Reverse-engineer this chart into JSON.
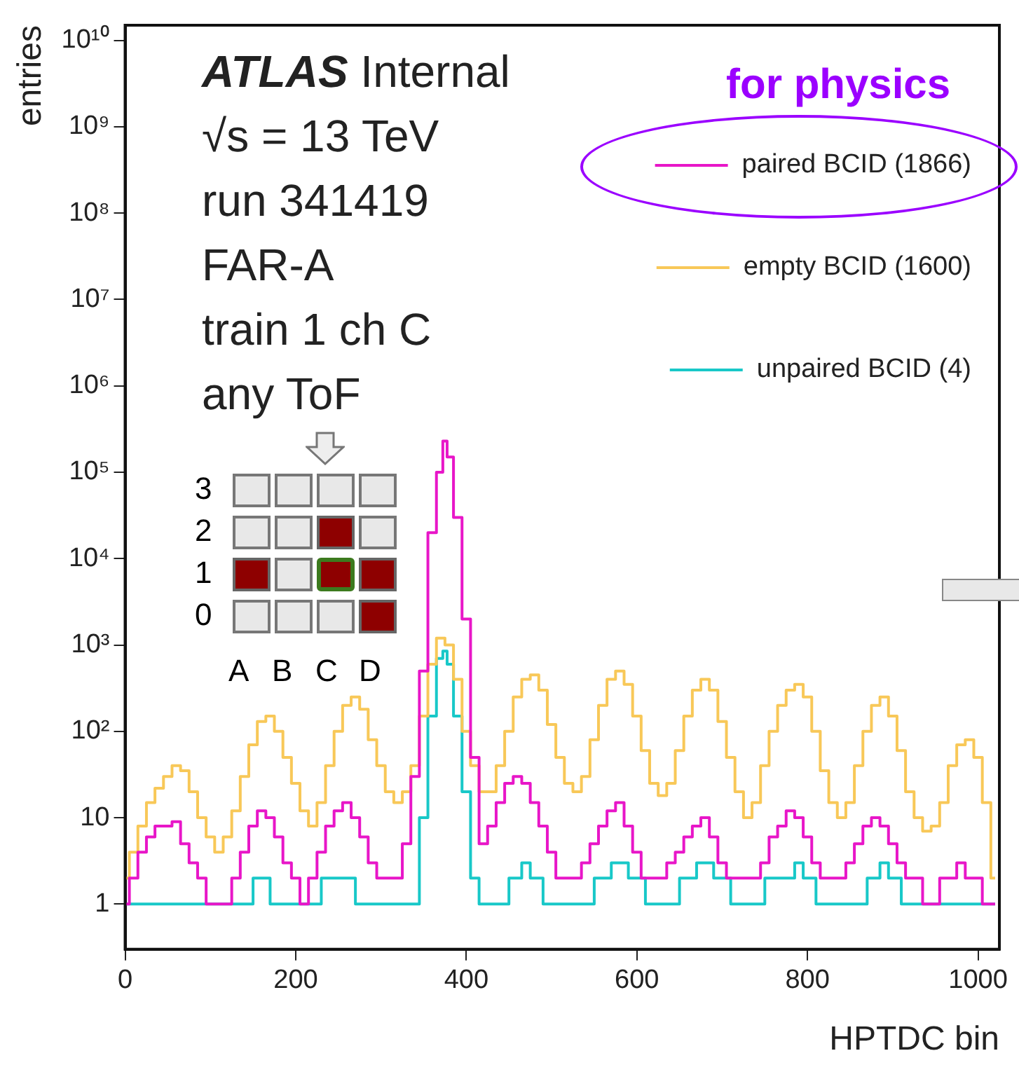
{
  "chart_data": {
    "type": "step",
    "xlabel": "HPTDC bin",
    "ylabel": "entries",
    "log": "y",
    "grid": false,
    "legend": "top right",
    "xlim": [
      0,
      1025
    ],
    "xticks": [
      0,
      200,
      400,
      600,
      800,
      1000
    ],
    "ylim": [
      0.3,
      15000000000
    ],
    "yticks": [
      1,
      10,
      {
        "value": 100,
        "label": "10²"
      },
      {
        "value": 1000,
        "label": "10³"
      },
      {
        "value": 10000,
        "label": "10⁴"
      },
      {
        "value": 100000,
        "label": "10⁵"
      },
      {
        "value": 1000000,
        "label": "10⁶"
      },
      {
        "value": 10000000,
        "label": "10⁷"
      },
      {
        "value": 100000000,
        "label": "10⁸"
      },
      {
        "value": 1000000000,
        "label": "10⁹"
      },
      {
        "value": 10000000000,
        "label": "10¹⁰"
      }
    ],
    "annotations": [
      "ATLAS Internal",
      "√s = 13 TeV",
      "run 341419",
      "FAR-A",
      "train 1 ch C",
      "any ToF",
      "for physics",
      "3",
      "2",
      "1",
      "0",
      "A",
      "B",
      "C",
      "D"
    ],
    "series": [
      {
        "name": "paired BCID (1866)",
        "color": "#e816c8",
        "x": [
          0,
          10,
          20,
          30,
          40,
          50,
          60,
          70,
          80,
          90,
          100,
          110,
          120,
          130,
          140,
          150,
          160,
          170,
          180,
          190,
          200,
          210,
          220,
          230,
          240,
          250,
          260,
          270,
          280,
          290,
          300,
          310,
          320,
          330,
          340,
          350,
          360,
          370,
          375,
          380,
          390,
          400,
          410,
          420,
          430,
          440,
          450,
          460,
          470,
          480,
          490,
          500,
          510,
          520,
          530,
          540,
          550,
          560,
          570,
          580,
          590,
          600,
          610,
          620,
          630,
          640,
          650,
          660,
          670,
          680,
          690,
          700,
          710,
          720,
          730,
          740,
          750,
          760,
          770,
          780,
          790,
          800,
          810,
          820,
          830,
          840,
          850,
          860,
          870,
          880,
          890,
          900,
          910,
          920,
          930,
          940,
          950,
          960,
          970,
          980,
          990,
          1000,
          1010,
          1020
        ],
        "values": [
          1,
          2,
          4,
          6,
          8,
          8,
          9,
          5,
          3,
          2,
          1,
          1,
          1,
          2,
          4,
          8,
          12,
          10,
          6,
          3,
          2,
          1,
          2,
          4,
          8,
          12,
          15,
          10,
          6,
          3,
          2,
          2,
          2,
          5,
          30,
          500,
          20000,
          100000,
          230000,
          150000,
          30000,
          2000,
          50,
          5,
          8,
          15,
          25,
          30,
          25,
          15,
          8,
          4,
          2,
          2,
          2,
          3,
          5,
          8,
          12,
          15,
          8,
          4,
          2,
          2,
          2,
          3,
          4,
          6,
          8,
          10,
          6,
          3,
          2,
          2,
          2,
          2,
          3,
          6,
          8,
          12,
          10,
          6,
          3,
          2,
          2,
          2,
          3,
          5,
          8,
          10,
          8,
          5,
          3,
          2,
          2,
          1,
          1,
          2,
          2,
          3,
          2,
          2,
          1,
          1
        ]
      },
      {
        "name": "empty BCID (1600)",
        "color": "#f8c858",
        "x": [
          0,
          10,
          20,
          30,
          40,
          50,
          60,
          70,
          80,
          90,
          100,
          110,
          120,
          130,
          140,
          150,
          160,
          170,
          180,
          190,
          200,
          210,
          220,
          230,
          240,
          250,
          260,
          270,
          280,
          290,
          300,
          310,
          320,
          330,
          340,
          350,
          360,
          370,
          380,
          390,
          400,
          410,
          420,
          430,
          440,
          450,
          460,
          470,
          480,
          490,
          500,
          510,
          520,
          530,
          540,
          550,
          560,
          570,
          580,
          590,
          600,
          610,
          620,
          630,
          640,
          650,
          660,
          670,
          680,
          690,
          700,
          710,
          720,
          730,
          740,
          750,
          760,
          770,
          780,
          790,
          800,
          810,
          820,
          830,
          840,
          850,
          860,
          870,
          880,
          890,
          900,
          910,
          920,
          930,
          940,
          950,
          960,
          970,
          980,
          990,
          1000,
          1010,
          1020
        ],
        "values": [
          2,
          4,
          8,
          15,
          22,
          30,
          40,
          35,
          20,
          10,
          6,
          4,
          6,
          12,
          30,
          70,
          130,
          150,
          100,
          50,
          25,
          12,
          8,
          15,
          40,
          100,
          200,
          250,
          180,
          80,
          40,
          20,
          15,
          20,
          40,
          150,
          600,
          1200,
          1000,
          400,
          100,
          40,
          20,
          20,
          40,
          100,
          250,
          400,
          450,
          300,
          120,
          50,
          25,
          20,
          30,
          80,
          200,
          400,
          500,
          350,
          150,
          60,
          25,
          18,
          25,
          60,
          150,
          300,
          400,
          300,
          130,
          50,
          20,
          10,
          15,
          40,
          100,
          200,
          300,
          350,
          250,
          100,
          35,
          15,
          10,
          15,
          40,
          100,
          200,
          250,
          150,
          60,
          20,
          10,
          7,
          8,
          15,
          40,
          70,
          80,
          50,
          15,
          2
        ]
      },
      {
        "name": "unpaired BCID (4)",
        "color": "#18c8c8",
        "x": [
          0,
          20,
          40,
          60,
          80,
          100,
          120,
          140,
          160,
          180,
          200,
          220,
          240,
          260,
          280,
          300,
          320,
          340,
          350,
          360,
          370,
          375,
          380,
          390,
          400,
          410,
          420,
          440,
          460,
          470,
          480,
          500,
          520,
          540,
          560,
          580,
          600,
          620,
          640,
          660,
          680,
          700,
          720,
          740,
          760,
          780,
          790,
          800,
          820,
          840,
          860,
          880,
          890,
          900,
          920,
          940,
          960,
          980,
          1000,
          1020
        ],
        "values": [
          1,
          1,
          1,
          1,
          1,
          1,
          1,
          1,
          2,
          1,
          1,
          1,
          2,
          2,
          1,
          1,
          1,
          1,
          10,
          150,
          700,
          850,
          600,
          150,
          20,
          2,
          1,
          1,
          2,
          3,
          2,
          1,
          1,
          1,
          2,
          3,
          2,
          1,
          1,
          2,
          3,
          2,
          1,
          1,
          2,
          2,
          3,
          2,
          1,
          1,
          1,
          2,
          3,
          2,
          1,
          1,
          1,
          1,
          1,
          1
        ]
      }
    ]
  }
}
